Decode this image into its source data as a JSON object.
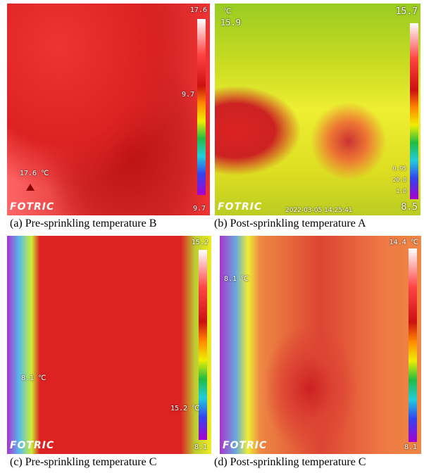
{
  "panels": [
    {
      "caption": "(a) Pre-sprinkling temperature B",
      "scale_max": "17.6",
      "scale_min": "9.7",
      "markers": [
        "9.7",
        "17.6 ℃"
      ],
      "logo": "FOTRIC"
    },
    {
      "caption": "(b) Post-sprinkling temperature A",
      "spot": "15.9",
      "unit": "℃",
      "scale_max": "15.7",
      "scale_min": "8.5",
      "timestamp": "2022-03-05 14:25:41",
      "params": [
        "0.95",
        "20.0",
        "1.0"
      ],
      "logo": "FOTRIC"
    },
    {
      "caption": "(c) Pre-sprinkling temperature C",
      "scale_max": "15.2",
      "scale_min": "8.1",
      "markers": [
        "8.1 ℃",
        "15.2 ℃"
      ],
      "logo": "FOTRIC"
    },
    {
      "caption": "(d) Post-sprinkling temperature C",
      "scale_max": "14.4 ℃",
      "scale_min": "8.1",
      "markers": [
        "8.1 ℃"
      ],
      "logo": "FOTRIC"
    }
  ]
}
